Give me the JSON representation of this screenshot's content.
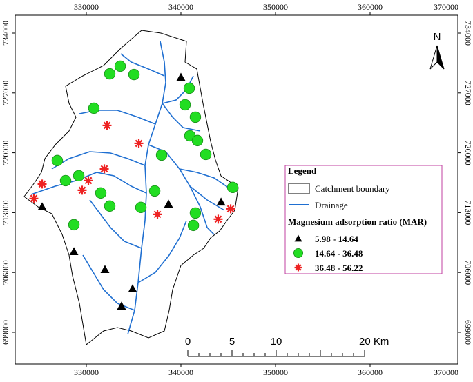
{
  "map": {
    "xticks": [
      330000,
      340000,
      350000,
      360000,
      370000
    ],
    "yticks": [
      734000,
      727000,
      720000,
      713000,
      706000,
      699000
    ],
    "north": "N",
    "scale_bar": [
      "0",
      "5",
      "10",
      "20 Km"
    ],
    "legend": {
      "title": "Legend",
      "boundary": "Catchment boundary",
      "drainage": "Drainage",
      "classes_title": "Magnesium adsorption ratio (MAR)",
      "classes": [
        {
          "label": "5.98 - 14.64",
          "shape": "triangle",
          "color": "#000000"
        },
        {
          "label": "14.64 - 36.48",
          "shape": "circle",
          "color": "#22dd22"
        },
        {
          "label": "36.48 - 56.22",
          "shape": "star",
          "color": "#ee2222"
        }
      ]
    },
    "points": [
      {
        "class": 0,
        "x": 340000,
        "y": 728840
      },
      {
        "class": 0,
        "x": 325330,
        "y": 713690
      },
      {
        "class": 0,
        "x": 344240,
        "y": 714250
      },
      {
        "class": 0,
        "x": 338690,
        "y": 714010
      },
      {
        "class": 0,
        "x": 328690,
        "y": 708450
      },
      {
        "class": 0,
        "x": 331970,
        "y": 706350
      },
      {
        "class": 0,
        "x": 334890,
        "y": 704100
      },
      {
        "class": 0,
        "x": 333720,
        "y": 702080
      },
      {
        "class": 1,
        "x": 332480,
        "y": 729240
      },
      {
        "class": 1,
        "x": 333580,
        "y": 730130
      },
      {
        "class": 1,
        "x": 335040,
        "y": 729160
      },
      {
        "class": 1,
        "x": 330800,
        "y": 725210
      },
      {
        "class": 1,
        "x": 340880,
        "y": 727550
      },
      {
        "class": 1,
        "x": 340440,
        "y": 725620
      },
      {
        "class": 1,
        "x": 341530,
        "y": 724170
      },
      {
        "class": 1,
        "x": 340950,
        "y": 721990
      },
      {
        "class": 1,
        "x": 341750,
        "y": 721430
      },
      {
        "class": 1,
        "x": 342630,
        "y": 719810
      },
      {
        "class": 1,
        "x": 337960,
        "y": 719730
      },
      {
        "class": 1,
        "x": 326930,
        "y": 719090
      },
      {
        "class": 1,
        "x": 327810,
        "y": 716750
      },
      {
        "class": 1,
        "x": 329200,
        "y": 717320
      },
      {
        "class": 1,
        "x": 331530,
        "y": 715300
      },
      {
        "class": 1,
        "x": 332480,
        "y": 713770
      },
      {
        "class": 1,
        "x": 337230,
        "y": 715540
      },
      {
        "class": 1,
        "x": 335770,
        "y": 713610
      },
      {
        "class": 1,
        "x": 341530,
        "y": 712960
      },
      {
        "class": 1,
        "x": 341320,
        "y": 711510
      },
      {
        "class": 1,
        "x": 328690,
        "y": 711590
      },
      {
        "class": 1,
        "x": 345480,
        "y": 715950
      },
      {
        "class": 2,
        "x": 332190,
        "y": 723200
      },
      {
        "class": 2,
        "x": 335550,
        "y": 721100
      },
      {
        "class": 2,
        "x": 331900,
        "y": 718120
      },
      {
        "class": 2,
        "x": 330220,
        "y": 716750
      },
      {
        "class": 2,
        "x": 329560,
        "y": 715620
      },
      {
        "class": 2,
        "x": 325330,
        "y": 716350
      },
      {
        "class": 2,
        "x": 324450,
        "y": 714660
      },
      {
        "class": 2,
        "x": 337520,
        "y": 712800
      },
      {
        "class": 2,
        "x": 343940,
        "y": 712240
      },
      {
        "class": 2,
        "x": 345260,
        "y": 713450
      }
    ]
  }
}
